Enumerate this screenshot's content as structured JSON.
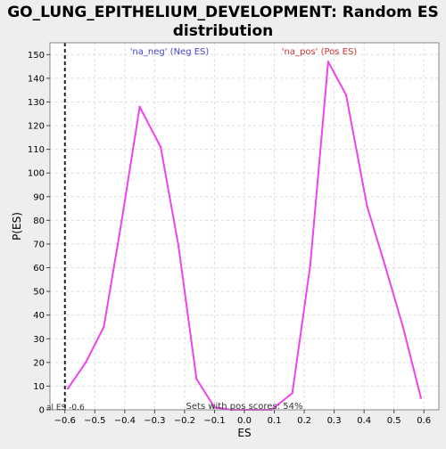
{
  "chart_data": {
    "type": "line",
    "title": "GO_LUNG_EPITHELIUM_DEVELOPMENT: Random ES distribution",
    "title_lines": [
      "GO_LUNG_EPITHELIUM_DEVELOPMENT: Random ES",
      "distribution"
    ],
    "xlabel": "ES",
    "ylabel": "P(ES)",
    "xlim": [
      -0.65,
      0.65
    ],
    "ylim": [
      0,
      155
    ],
    "xticks": [
      -0.6,
      -0.5,
      -0.4,
      -0.3,
      -0.2,
      -0.1,
      0.0,
      0.1,
      0.2,
      0.3,
      0.4,
      0.5,
      0.6
    ],
    "xtick_labels": [
      "−0.6",
      "−0.5",
      "−0.4",
      "−0.3",
      "−0.2",
      "−0.1",
      "0.0",
      "0.1",
      "0.2",
      "0.3",
      "0.4",
      "0.5",
      "0.6"
    ],
    "yticks": [
      0,
      10,
      20,
      30,
      40,
      50,
      60,
      70,
      80,
      90,
      100,
      110,
      120,
      130,
      140,
      150
    ],
    "grid": true,
    "line_color": "#ee44ee",
    "series": [
      {
        "x": [
          -0.59,
          -0.53,
          -0.47,
          -0.41,
          -0.35,
          -0.28,
          -0.22,
          -0.16,
          -0.1,
          -0.04,
          0.03,
          0.09,
          0.16,
          0.22,
          0.28,
          0.34,
          0.41,
          0.47,
          0.53,
          0.59
        ],
        "y": [
          9,
          20,
          35,
          80,
          128,
          111,
          69,
          13,
          1,
          0,
          0,
          0,
          7,
          61,
          147,
          133,
          86,
          61,
          35,
          5
        ]
      }
    ],
    "actual_es": -0.6,
    "actual_es_label": "al ES -0.6",
    "annotations": {
      "neg_label": "'na_neg' (Neg ES)",
      "neg_color": "#4444cc",
      "pos_label": "'na_pos' (Pos ES)",
      "pos_color": "#cc3333",
      "sets_label": "Sets with pos scores: 54%"
    }
  }
}
